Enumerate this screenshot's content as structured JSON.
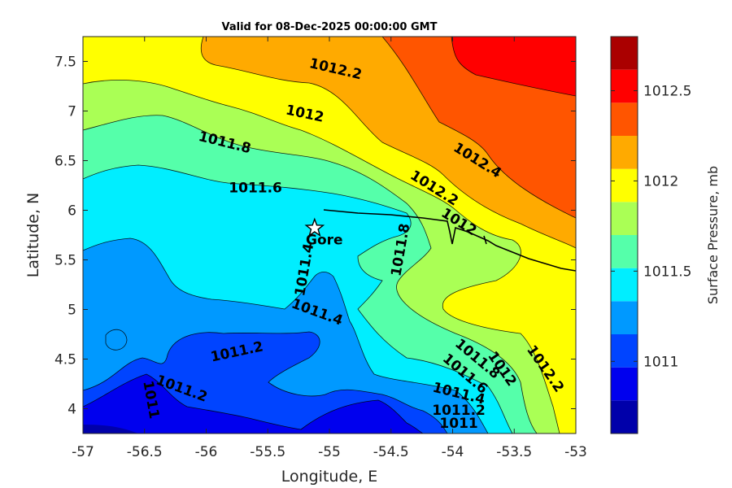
{
  "chart_data": {
    "type": "contour",
    "title": "Valid for 08-Dec-2025 00:00:00 GMT",
    "xlabel": "Longitude, E",
    "ylabel": "Latitude, N",
    "colorbar_label": "Surface Pressure, mb",
    "xlim": [
      -57,
      -53
    ],
    "ylim": [
      3.75,
      7.75
    ],
    "x_ticks": [
      -57,
      -56.5,
      -56,
      -55.5,
      -55,
      -54.5,
      -54,
      -53.5,
      -53
    ],
    "x_tick_labels": [
      "-57",
      "-56.5",
      "-56",
      "-55.5",
      "-55",
      "-54.5",
      "-54",
      "-53.5",
      "-53"
    ],
    "y_ticks": [
      4,
      4.5,
      5,
      5.5,
      6,
      6.5,
      7,
      7.5
    ],
    "y_tick_labels": [
      "4",
      "4.5",
      "5",
      "5.5",
      "6",
      "6.5",
      "7",
      "7.5"
    ],
    "colorbar": {
      "range": [
        1010.6,
        1012.8
      ],
      "levels": [
        1010.6,
        1010.7,
        1010.8,
        1010.9,
        1011.0,
        1011.1,
        1011.2,
        1011.3,
        1011.4,
        1011.5,
        1011.6,
        1011.7,
        1011.8,
        1011.9,
        1012.0,
        1012.1,
        1012.2,
        1012.3,
        1012.4,
        1012.5,
        1012.6,
        1012.7,
        1012.8
      ],
      "tick_values": [
        1011,
        1011.5,
        1012,
        1012.5
      ],
      "tick_labels": [
        "1011",
        "1011.5",
        "1012",
        "1012.5"
      ],
      "colors": [
        "#0000aa",
        "#0000ee",
        "#0044ff",
        "#0099ff",
        "#00eeff",
        "#55ffaa",
        "#aaff55",
        "#ffff00",
        "#ffaa00",
        "#ff5500",
        "#ff0000",
        "#aa0000"
      ]
    },
    "contour_labels": [
      {
        "text": "1012.2",
        "lon": -54.95,
        "lat": 7.42
      },
      {
        "text": "1012",
        "lon": -55.2,
        "lat": 6.97
      },
      {
        "text": "1011.8",
        "lon": -55.85,
        "lat": 6.68
      },
      {
        "text": "1011.6",
        "lon": -55.6,
        "lat": 6.22
      },
      {
        "text": "1012.4",
        "lon": -53.8,
        "lat": 6.5
      },
      {
        "text": "1012.2",
        "lon": -54.15,
        "lat": 6.22
      },
      {
        "text": "1012",
        "lon": -53.95,
        "lat": 5.88
      },
      {
        "text": "1011.8",
        "lon": -54.42,
        "lat": 5.6
      },
      {
        "text": "1011.4",
        "lon": -55.2,
        "lat": 5.4
      },
      {
        "text": "1011.4",
        "lon": -55.1,
        "lat": 4.97
      },
      {
        "text": "1011.2",
        "lon": -55.75,
        "lat": 4.57
      },
      {
        "text": "1011.2",
        "lon": -56.2,
        "lat": 4.2
      },
      {
        "text": "1011",
        "lon": -56.45,
        "lat": 4.09
      },
      {
        "text": "1011.4",
        "lon": -53.95,
        "lat": 4.15
      },
      {
        "text": "1011.2",
        "lon": -53.95,
        "lat": 3.98
      },
      {
        "text": "1011",
        "lon": -53.95,
        "lat": 3.85
      },
      {
        "text": "1011.8",
        "lon": -53.8,
        "lat": 4.5
      },
      {
        "text": "1011.6",
        "lon": -53.9,
        "lat": 4.35
      },
      {
        "text": "1012",
        "lon": -53.6,
        "lat": 4.4
      },
      {
        "text": "1012.2",
        "lon": -53.25,
        "lat": 4.4
      }
    ],
    "location": {
      "name": "Gore",
      "lon": -55.12,
      "lat": 5.82
    },
    "grid": false
  }
}
